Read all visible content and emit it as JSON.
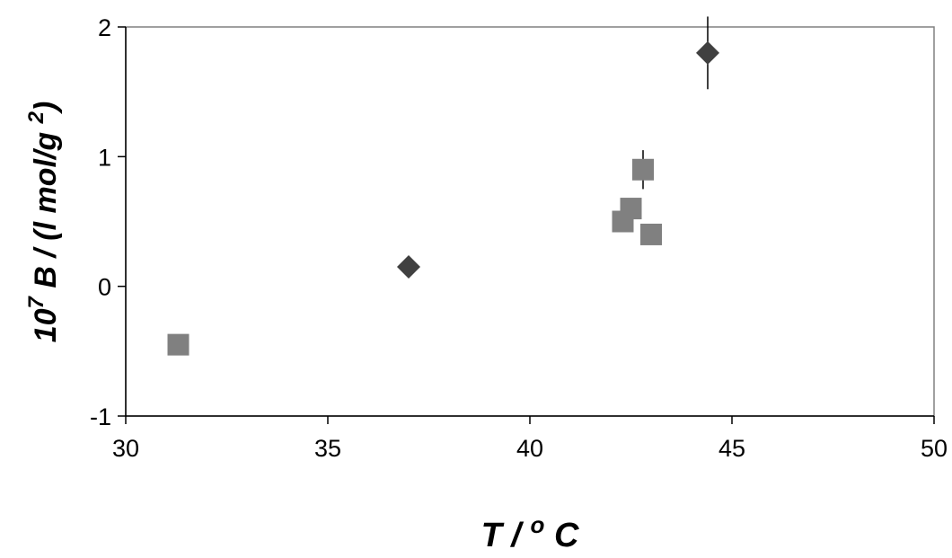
{
  "chart_data": {
    "type": "scatter",
    "title": "",
    "xlabel": {
      "main": "T / ",
      "sup": "o",
      "tail": " C"
    },
    "ylabel": {
      "pre": "10",
      "sup1": "7",
      "mid": " B / (l mol/g ",
      "sup2": "2",
      "tail": ")"
    },
    "xlim": [
      30,
      50
    ],
    "ylim": [
      -1,
      2
    ],
    "x_ticks": [
      30,
      35,
      40,
      45,
      50
    ],
    "y_ticks": [
      -1,
      0,
      1,
      2
    ],
    "grid": false,
    "legend": "none",
    "series": [
      {
        "marker": "diamond",
        "color": "#404040",
        "points": [
          {
            "x": 37.0,
            "y": 0.15
          },
          {
            "x": 44.4,
            "y": 1.8,
            "err": 0.28
          }
        ]
      },
      {
        "marker": "square",
        "color": "#808080",
        "points": [
          {
            "x": 31.3,
            "y": -0.45
          },
          {
            "x": 42.3,
            "y": 0.5
          },
          {
            "x": 42.5,
            "y": 0.6
          },
          {
            "x": 42.8,
            "y": 0.9,
            "err": 0.15
          },
          {
            "x": 43.0,
            "y": 0.4
          }
        ]
      }
    ]
  }
}
